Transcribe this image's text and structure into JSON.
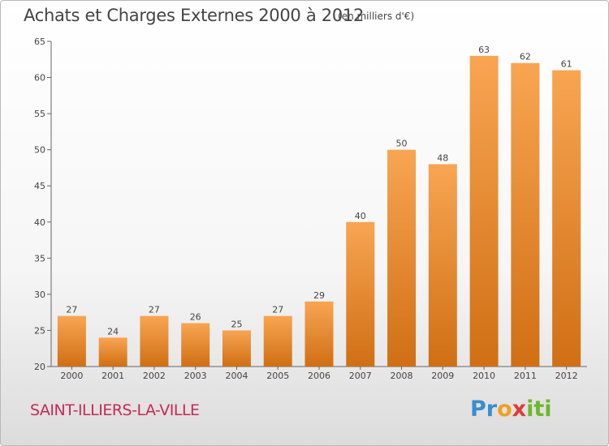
{
  "header": {
    "title": "Achats et Charges Externes 2000 à 2012",
    "subtitle": "(en milliers d'€)"
  },
  "footer": {
    "town": "SAINT-ILLIERS-LA-VILLE",
    "brand": {
      "text": "Proxiti",
      "parts": [
        "Pr",
        "o",
        "x",
        "iti"
      ]
    }
  },
  "chart_data": {
    "type": "bar",
    "title": "Achats et Charges Externes 2000 à 2012",
    "subtitle": "(en milliers d'€)",
    "xlabel": "",
    "ylabel": "",
    "categories": [
      "2000",
      "2001",
      "2002",
      "2003",
      "2004",
      "2005",
      "2006",
      "2007",
      "2008",
      "2009",
      "2010",
      "2011",
      "2012"
    ],
    "values": [
      27,
      24,
      27,
      26,
      25,
      27,
      29,
      40,
      50,
      48,
      63,
      62,
      61
    ],
    "ylim": [
      20,
      65
    ],
    "yticks": [
      20,
      25,
      30,
      35,
      40,
      45,
      50,
      55,
      60,
      65
    ],
    "grid": false,
    "legend": "none",
    "colors": {
      "bar_top": "#f8a552",
      "bar_bottom": "#d06f14",
      "axis": "#666666",
      "text": "#444444"
    }
  }
}
